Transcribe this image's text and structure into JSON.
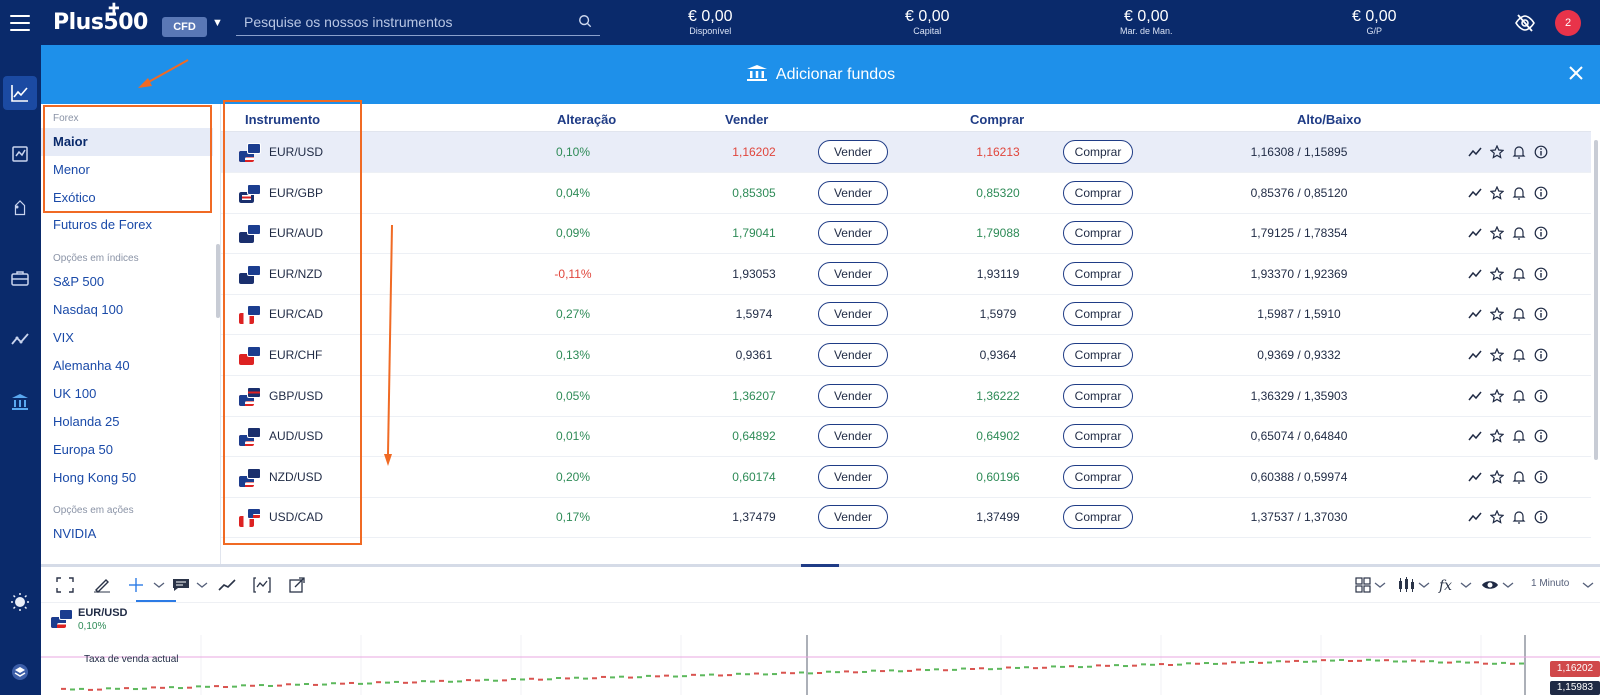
{
  "header": {
    "logo": "Plus500",
    "account_type": "CFD",
    "search_placeholder": "Pesquise os nossos instrumentos",
    "notifications_count": "2",
    "metrics": [
      {
        "value": "€ 0,00",
        "label": "Disponível"
      },
      {
        "value": "€ 0,00",
        "label": "Capital"
      },
      {
        "value": "€ 0,00",
        "label": "Mar. de Man."
      },
      {
        "value": "€ 0,00",
        "label": "G/P"
      }
    ]
  },
  "banner": {
    "text": "Adicionar fundos"
  },
  "categories": {
    "forex_section": "Forex",
    "forex_items": [
      "Maior",
      "Menor",
      "Exótico"
    ],
    "futures": "Futuros de Forex",
    "indices_section": "Opções em índices",
    "indices_items": [
      "S&P 500",
      "Nasdaq 100",
      "VIX",
      "Alemanha 40",
      "UK 100",
      "Holanda 25",
      "Europa 50",
      "Hong Kong 50"
    ],
    "stocks_section": "Opções em ações",
    "stocks_items": [
      "NVIDIA"
    ]
  },
  "table": {
    "headers": {
      "instrument": "Instrumento",
      "change": "Alteração",
      "sell": "Vender",
      "buy": "Comprar",
      "high_low": "Alto/Baixo"
    },
    "sell_button": "Vender",
    "buy_button": "Comprar",
    "rows": [
      {
        "instrument": "EUR/USD",
        "change": "0,10%",
        "sell": "1,16202",
        "buy": "1,16213",
        "high_low": "1,16308 / 1,15895",
        "change_dir": "pos",
        "sell_dir": "neg",
        "buy_dir": "neg"
      },
      {
        "instrument": "EUR/GBP",
        "change": "0,04%",
        "sell": "0,85305",
        "buy": "0,85320",
        "high_low": "0,85376 / 0,85120",
        "change_dir": "pos",
        "sell_dir": "pos",
        "buy_dir": "pos"
      },
      {
        "instrument": "EUR/AUD",
        "change": "0,09%",
        "sell": "1,79041",
        "buy": "1,79088",
        "high_low": "1,79125 / 1,78354",
        "change_dir": "pos",
        "sell_dir": "pos",
        "buy_dir": "pos"
      },
      {
        "instrument": "EUR/NZD",
        "change": "-0,11%",
        "sell": "1,93053",
        "buy": "1,93119",
        "high_low": "1,93370 / 1,92369",
        "change_dir": "neg",
        "sell_dir": "neu",
        "buy_dir": "neu"
      },
      {
        "instrument": "EUR/CAD",
        "change": "0,27%",
        "sell": "1,5974",
        "buy": "1,5979",
        "high_low": "1,5987 / 1,5910",
        "change_dir": "pos",
        "sell_dir": "neu",
        "buy_dir": "neu"
      },
      {
        "instrument": "EUR/CHF",
        "change": "0,13%",
        "sell": "0,9361",
        "buy": "0,9364",
        "high_low": "0,9369 / 0,9332",
        "change_dir": "pos",
        "sell_dir": "neu",
        "buy_dir": "neu"
      },
      {
        "instrument": "GBP/USD",
        "change": "0,05%",
        "sell": "1,36207",
        "buy": "1,36222",
        "high_low": "1,36329 / 1,35903",
        "change_dir": "pos",
        "sell_dir": "pos",
        "buy_dir": "pos"
      },
      {
        "instrument": "AUD/USD",
        "change": "0,01%",
        "sell": "0,64892",
        "buy": "0,64902",
        "high_low": "0,65074 / 0,64840",
        "change_dir": "pos",
        "sell_dir": "pos",
        "buy_dir": "pos"
      },
      {
        "instrument": "NZD/USD",
        "change": "0,20%",
        "sell": "0,60174",
        "buy": "0,60196",
        "high_low": "0,60388 / 0,59974",
        "change_dir": "pos",
        "sell_dir": "pos",
        "buy_dir": "pos"
      },
      {
        "instrument": "USD/CAD",
        "change": "0,17%",
        "sell": "1,37479",
        "buy": "1,37499",
        "high_low": "1,37537 / 1,37030",
        "change_dir": "pos",
        "sell_dir": "neu",
        "buy_dir": "neu"
      }
    ]
  },
  "chart": {
    "symbol": "EUR/USD",
    "change": "0,10%",
    "interval": "1 Minuto",
    "current_label": "Taxa de venda actual",
    "current_price": "1,16202",
    "bottom_price": "1,15983"
  },
  "colors": {
    "navy": "#0a2a6b",
    "banner_blue": "#1e90ea",
    "positive": "#2e8b57",
    "negative": "#e0463c",
    "annotation": "#f06a24"
  },
  "icons": {
    "rail": [
      "chart-line-icon",
      "exchange-icon",
      "tag-icon",
      "briefcase-icon",
      "trend-icon",
      "bank-icon"
    ],
    "row_actions": [
      "trend-icon",
      "star-icon",
      "bell-icon",
      "info-icon"
    ]
  }
}
